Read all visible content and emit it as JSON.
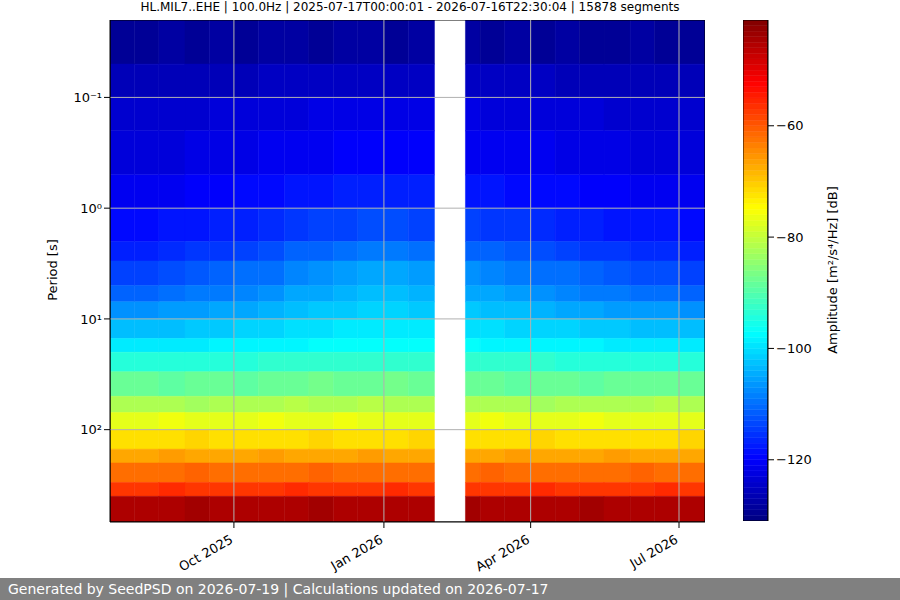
{
  "chart_data": {
    "type": "heatmap",
    "title": "HL.MIL7..EHE | 100.0Hz | 2025-07-17T00:00:01 - 2026-07-16T22:30:04 | 15878 segments",
    "footer": "Generated by SeedPSD on 2026-07-19 | Calculations updated on 2026-07-17",
    "y_label": "Period [s]",
    "log": "y",
    "grid": true,
    "xlim": [
      "2025-07-17T00:00:01",
      "2026-07-16T22:30:04"
    ],
    "xticks": [
      {
        "value": "2025-10-01",
        "label": "Oct 2025"
      },
      {
        "value": "2026-01-01",
        "label": "Jan 2026"
      },
      {
        "value": "2026-04-01",
        "label": "Apr 2026"
      },
      {
        "value": "2026-07-01",
        "label": "Jul 2026"
      }
    ],
    "ylim": [
      0.02,
      682
    ],
    "yticks": [
      {
        "value": 0.1,
        "label": "10⁻¹"
      },
      {
        "value": 1,
        "label": "10⁰"
      },
      {
        "value": 10,
        "label": "10¹"
      },
      {
        "value": 100,
        "label": "10²"
      }
    ],
    "x_edges": [
      "2025-07-17T00:00:01",
      "2025-08-01",
      "2025-08-16",
      "2025-09-01",
      "2025-09-16",
      "2025-10-01",
      "2025-10-16",
      "2025-11-01",
      "2025-11-16",
      "2025-12-01",
      "2025-12-16",
      "2026-01-01",
      "2026-01-16",
      "2026-02-01",
      "2026-02-20",
      "2026-03-01",
      "2026-03-16",
      "2026-04-01",
      "2026-04-16",
      "2026-05-01",
      "2026-05-16",
      "2026-06-01",
      "2026-06-16",
      "2026-07-01",
      "2026-07-16T22:30:04"
    ],
    "y_edges": [
      0.02,
      0.05,
      0.1,
      0.2,
      0.5,
      1,
      2,
      3,
      5,
      7,
      10,
      15,
      20,
      30,
      50,
      70,
      100,
      150,
      200,
      300,
      400,
      682
    ],
    "cells": [
      [
        -129,
        -129,
        -128,
        -129,
        -128,
        -129,
        -128,
        -128,
        -129,
        -128,
        -128,
        -129,
        -128,
        null,
        -128,
        -129,
        -128,
        -129,
        -128,
        -129,
        -129,
        -128,
        -129,
        -129
      ],
      [
        -126,
        -126,
        -126,
        -126,
        -126,
        -126,
        -125,
        -125,
        -125,
        -125,
        -125,
        -125,
        -125,
        null,
        -125,
        -125,
        -125,
        -125,
        -126,
        -126,
        -126,
        -126,
        -126,
        -126
      ],
      [
        -124,
        -124,
        -124,
        -124,
        -123,
        -123,
        -123,
        -123,
        -122,
        -122,
        -122,
        -122,
        -122,
        null,
        -122,
        -123,
        -123,
        -123,
        -123,
        -123,
        -124,
        -124,
        -124,
        -124
      ],
      [
        -123,
        -123,
        -123,
        -122,
        -122,
        -122,
        -121,
        -121,
        -121,
        -120,
        -120,
        -120,
        -120,
        null,
        -121,
        -121,
        -121,
        -121,
        -122,
        -122,
        -122,
        -123,
        -123,
        -123
      ],
      [
        -121,
        -121,
        -121,
        -120,
        -120,
        -119,
        -119,
        -118,
        -118,
        -117,
        -117,
        -117,
        -117,
        null,
        -118,
        -118,
        -119,
        -119,
        -119,
        -120,
        -120,
        -121,
        -121,
        -121
      ],
      [
        -119,
        -119,
        -118,
        -118,
        -117,
        -117,
        -116,
        -115,
        -114,
        -114,
        -113,
        -113,
        -114,
        null,
        -114,
        -115,
        -115,
        -116,
        -117,
        -117,
        -118,
        -118,
        -118,
        -119
      ],
      [
        -117,
        -117,
        -116,
        -115,
        -115,
        -114,
        -113,
        -111,
        -111,
        -110,
        -109,
        -109,
        -110,
        null,
        -111,
        -111,
        -112,
        -113,
        -114,
        -115,
        -115,
        -116,
        -116,
        -117
      ],
      [
        -114,
        -114,
        -113,
        -112,
        -111,
        -110,
        -110,
        -108,
        -107,
        -106,
        -105,
        -105,
        -106,
        null,
        -107,
        -108,
        -109,
        -110,
        -110,
        -111,
        -112,
        -113,
        -113,
        -114
      ],
      [
        -111,
        -111,
        -110,
        -109,
        -109,
        -108,
        -107,
        -105,
        -105,
        -104,
        -103,
        -103,
        -104,
        null,
        -105,
        -105,
        -106,
        -107,
        -108,
        -109,
        -109,
        -110,
        -110,
        -111
      ],
      [
        -107,
        -107,
        -106,
        -106,
        -105,
        -105,
        -104,
        -103,
        -102,
        -102,
        -101,
        -101,
        -102,
        null,
        -102,
        -103,
        -103,
        -104,
        -105,
        -105,
        -106,
        -106,
        -106,
        -107
      ],
      [
        -103,
        -103,
        -103,
        -102,
        -102,
        -101,
        -101,
        -100,
        -100,
        -99,
        -99,
        -99,
        -99,
        null,
        -100,
        -100,
        -101,
        -101,
        -101,
        -102,
        -102,
        -103,
        -103,
        -103
      ],
      [
        -99,
        -99,
        -99,
        -99,
        -98,
        -98,
        -98,
        -98,
        -97,
        -97,
        -97,
        -97,
        -97,
        null,
        -97,
        -98,
        -98,
        -98,
        -98,
        -98,
        -99,
        -99,
        -99,
        -99
      ],
      [
        -94,
        -94,
        -94,
        -94,
        -94,
        -94,
        -93,
        -93,
        -93,
        -93,
        -93,
        -93,
        -93,
        null,
        -93,
        -93,
        -93,
        -93,
        -94,
        -94,
        -94,
        -94,
        -94,
        -94
      ],
      [
        -88,
        -88,
        -89,
        -88,
        -88,
        -89,
        -88,
        -88,
        -87,
        -88,
        -88,
        -87,
        -88,
        null,
        -88,
        -88,
        -89,
        -88,
        -88,
        -89,
        -88,
        -88,
        -88,
        -88
      ],
      [
        -82,
        -82,
        -82,
        -83,
        -82,
        -82,
        -82,
        -81,
        -82,
        -82,
        -81,
        -82,
        -82,
        null,
        -82,
        -82,
        -82,
        -83,
        -82,
        -82,
        -82,
        -82,
        -81,
        -82
      ],
      [
        -77,
        -77,
        -76,
        -77,
        -77,
        -77,
        -76,
        -77,
        -77,
        -76,
        -77,
        -77,
        -77,
        null,
        -77,
        -76,
        -77,
        -77,
        -77,
        -76,
        -77,
        -77,
        -77,
        -77
      ],
      [
        -72,
        -72,
        -72,
        -71,
        -72,
        -72,
        -72,
        -72,
        -71,
        -72,
        -72,
        -72,
        -71,
        null,
        -72,
        -72,
        -72,
        -71,
        -72,
        -72,
        -72,
        -72,
        -72,
        -71
      ],
      [
        -67,
        -67,
        -66,
        -67,
        -67,
        -67,
        -66,
        -67,
        -67,
        -67,
        -66,
        -67,
        -67,
        null,
        -67,
        -67,
        -66,
        -67,
        -67,
        -67,
        -66,
        -67,
        -67,
        -67
      ],
      [
        -62,
        -62,
        -62,
        -61,
        -62,
        -62,
        -62,
        -62,
        -61,
        -62,
        -62,
        -62,
        -62,
        null,
        -62,
        -61,
        -62,
        -62,
        -62,
        -62,
        -62,
        -61,
        -62,
        -62
      ],
      [
        -57,
        -57,
        -56,
        -57,
        -57,
        -57,
        -57,
        -56,
        -57,
        -57,
        -57,
        -56,
        -57,
        null,
        -57,
        -57,
        -57,
        -56,
        -57,
        -57,
        -57,
        -57,
        -56,
        -57
      ],
      [
        -45,
        -45,
        -45,
        -44,
        -45,
        -45,
        -45,
        -45,
        -44,
        -45,
        -45,
        -45,
        -45,
        null,
        -44,
        -45,
        -45,
        -45,
        -45,
        -44,
        -45,
        -45,
        -45,
        -45
      ]
    ],
    "colorbar": {
      "label": "Amplitude [m²/s⁴/Hz] [dB]",
      "range": [
        -131,
        -41
      ],
      "ticks": [
        {
          "value": -60,
          "label": "−60"
        },
        {
          "value": -80,
          "label": "−80"
        },
        {
          "value": -100,
          "label": "−100"
        },
        {
          "value": -120,
          "label": "−120"
        }
      ]
    }
  }
}
